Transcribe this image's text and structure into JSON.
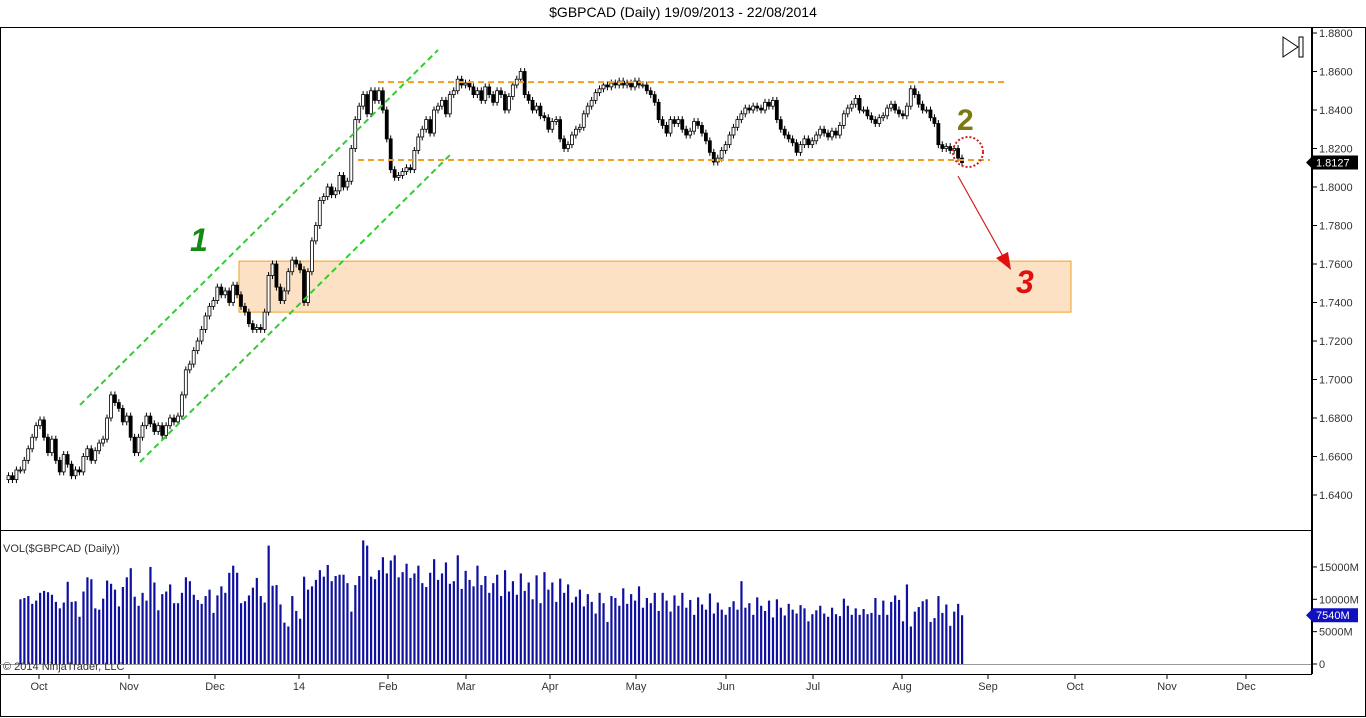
{
  "title": "$GBPCAD (Daily)  19/09/2013 - 22/08/2014",
  "volume_label": "VOL($GBPCAD (Daily))",
  "copyright": "© 2014 NinjaTrader, LLC",
  "annotations": {
    "label_1": "1",
    "label_2": "2",
    "label_3": "3"
  },
  "colors": {
    "channel": "#33cc33",
    "range_lines": "#f0a020",
    "target_zone": "#fbd9b5",
    "label_1": "#138a13",
    "label_2": "#7a7a10",
    "label_3": "#e01010",
    "volume": "#1010a0"
  },
  "chart_data": [
    {
      "type": "candlestick",
      "title": "$GBPCAD (Daily)  19/09/2013 - 22/08/2014",
      "x_tick_labels": [
        "Oct",
        "Nov",
        "Dec",
        "14",
        "Feb",
        "Mar",
        "Apr",
        "May",
        "Jun",
        "Jul",
        "Aug",
        "Sep",
        "Oct",
        "Nov",
        "Dec"
      ],
      "y_tick_labels": [
        "1.8800",
        "1.8600",
        "1.8400",
        "1.8200",
        "1.8000",
        "1.7800",
        "1.7600",
        "1.7400",
        "1.7200",
        "1.7000",
        "1.6800",
        "1.6600",
        "1.6400"
      ],
      "ylim": [
        1.63,
        1.885
      ],
      "last_price": "1.8127",
      "resistance": 1.8545,
      "support": 1.814,
      "target_zone": [
        1.735,
        1.7615
      ],
      "closes": [
        1.65,
        1.648,
        1.653,
        1.653,
        1.658,
        1.664,
        1.67,
        1.676,
        1.679,
        1.67,
        1.662,
        1.669,
        1.658,
        1.652,
        1.661,
        1.656,
        1.65,
        1.653,
        1.652,
        1.66,
        1.664,
        1.658,
        1.663,
        1.667,
        1.669,
        1.68,
        1.692,
        1.688,
        1.685,
        1.678,
        1.681,
        1.67,
        1.662,
        1.67,
        1.676,
        1.681,
        1.677,
        1.673,
        1.676,
        1.671,
        1.676,
        1.68,
        1.678,
        1.681,
        1.692,
        1.705,
        1.708,
        1.715,
        1.72,
        1.726,
        1.733,
        1.738,
        1.741,
        1.748,
        1.744,
        1.746,
        1.74,
        1.749,
        1.744,
        1.738,
        1.735,
        1.729,
        1.726,
        1.727,
        1.726,
        1.735,
        1.754,
        1.76,
        1.748,
        1.741,
        1.746,
        1.756,
        1.762,
        1.76,
        1.757,
        1.74,
        1.756,
        1.772,
        1.78,
        1.793,
        1.795,
        1.8,
        1.796,
        1.798,
        1.806,
        1.8,
        1.803,
        1.82,
        1.835,
        1.842,
        1.848,
        1.838,
        1.85,
        1.845,
        1.85,
        1.84,
        1.825,
        1.809,
        1.805,
        1.806,
        1.808,
        1.81,
        1.809,
        1.819,
        1.826,
        1.83,
        1.835,
        1.828,
        1.84,
        1.842,
        1.845,
        1.838,
        1.848,
        1.85,
        1.856,
        1.853,
        1.854,
        1.852,
        1.848,
        1.85,
        1.845,
        1.852,
        1.848,
        1.844,
        1.85,
        1.848,
        1.84,
        1.847,
        1.853,
        1.856,
        1.86,
        1.848,
        1.845,
        1.84,
        1.842,
        1.837,
        1.836,
        1.83,
        1.834,
        1.835,
        1.825,
        1.82,
        1.822,
        1.827,
        1.83,
        1.831,
        1.838,
        1.842,
        1.845,
        1.849,
        1.851,
        1.853,
        1.852,
        1.854,
        1.853,
        1.855,
        1.853,
        1.854,
        1.852,
        1.855,
        1.853,
        1.853,
        1.85,
        1.848,
        1.844,
        1.835,
        1.832,
        1.828,
        1.835,
        1.833,
        1.835,
        1.83,
        1.827,
        1.829,
        1.834,
        1.832,
        1.828,
        1.824,
        1.818,
        1.813,
        1.815,
        1.819,
        1.822,
        1.827,
        1.831,
        1.835,
        1.838,
        1.841,
        1.84,
        1.842,
        1.841,
        1.84,
        1.844,
        1.842,
        1.845,
        1.835,
        1.83,
        1.827,
        1.825,
        1.823,
        1.818,
        1.822,
        1.825,
        1.822,
        1.824,
        1.827,
        1.83,
        1.828,
        1.826,
        1.829,
        1.827,
        1.832,
        1.838,
        1.841,
        1.843,
        1.846,
        1.84,
        1.84,
        1.837,
        1.835,
        1.833,
        1.836,
        1.837,
        1.841,
        1.843,
        1.84,
        1.838,
        1.837,
        1.842,
        1.851,
        1.848,
        1.843,
        1.84,
        1.84,
        1.836,
        1.833,
        1.822,
        1.82,
        1.821,
        1.819,
        1.82,
        1.815,
        1.8127
      ]
    },
    {
      "type": "bar",
      "title": "VOL($GBPCAD (Daily))",
      "y_tick_labels": [
        "15000M",
        "10000M",
        "5000M",
        "0"
      ],
      "ylim": [
        0,
        20000
      ],
      "unit": "M",
      "last_value": "7540M",
      "values": [
        10000,
        10200,
        10500,
        9300,
        9800,
        11000,
        11300,
        11100,
        10700,
        9600,
        8600,
        9500,
        12700,
        9600,
        9700,
        7300,
        11200,
        13400,
        13100,
        8600,
        8400,
        10100,
        12900,
        12400,
        11500,
        8900,
        11900,
        13400,
        14800,
        10400,
        9000,
        11000,
        9800,
        15000,
        12600,
        8300,
        10800,
        11200,
        12300,
        9400,
        9400,
        11000,
        13400,
        12800,
        10700,
        9900,
        9300,
        10500,
        11500,
        7900,
        10600,
        12000,
        11000,
        14100,
        15200,
        14100,
        9400,
        9700,
        10600,
        11800,
        13300,
        10500,
        9500,
        18300,
        12100,
        12200,
        9200,
        6400,
        5800,
        10500,
        8200,
        7000,
        13500,
        11500,
        12000,
        13000,
        14500,
        13500,
        15300,
        12800,
        13600,
        13800,
        13800,
        12500,
        8100,
        12200,
        13600,
        19100,
        18300,
        13500,
        13100,
        14500,
        16500,
        14000,
        16000,
        16800,
        13400,
        14200,
        15500,
        13300,
        14000,
        15200,
        12500,
        11900,
        14100,
        16200,
        13000,
        14000,
        15700,
        12400,
        12800,
        16800,
        11600,
        14400,
        13000,
        12000,
        15200,
        12200,
        13600,
        11000,
        12500,
        13800,
        10500,
        14500,
        11200,
        12800,
        10700,
        14000,
        11300,
        12600,
        10000,
        13700,
        9400,
        14200,
        11500,
        12600,
        9600,
        13200,
        11000,
        12300,
        9500,
        10400,
        11500,
        8900,
        10800,
        9600,
        7800,
        11000,
        9400,
        6500,
        10500,
        10200,
        9000,
        11700,
        9300,
        10800,
        9800,
        12000,
        8700,
        10200,
        9400,
        11000,
        8200,
        11000,
        9800,
        8100,
        10600,
        9000,
        11000,
        8700,
        9900,
        7600,
        10300,
        9200,
        8400,
        10900,
        7800,
        9500,
        8400,
        7600,
        8800,
        9700,
        8400,
        12800,
        8700,
        9400,
        7600,
        10300,
        9000,
        8200,
        9800,
        7200,
        10000,
        8700,
        7500,
        9300,
        8400,
        7800,
        9100,
        8600,
        6600,
        7700,
        8300,
        9000,
        7800,
        7300,
        8700,
        7700,
        7400,
        10100,
        9000,
        7600,
        8600,
        7600,
        8500,
        7700,
        7900,
        10200,
        7600,
        9800,
        7600,
        9600,
        10600,
        9900,
        6600,
        12300,
        5800,
        8100,
        8800,
        9700,
        10000,
        6500,
        7100,
        10500,
        7900,
        9200,
        5900,
        8100,
        9300,
        7540
      ]
    }
  ]
}
